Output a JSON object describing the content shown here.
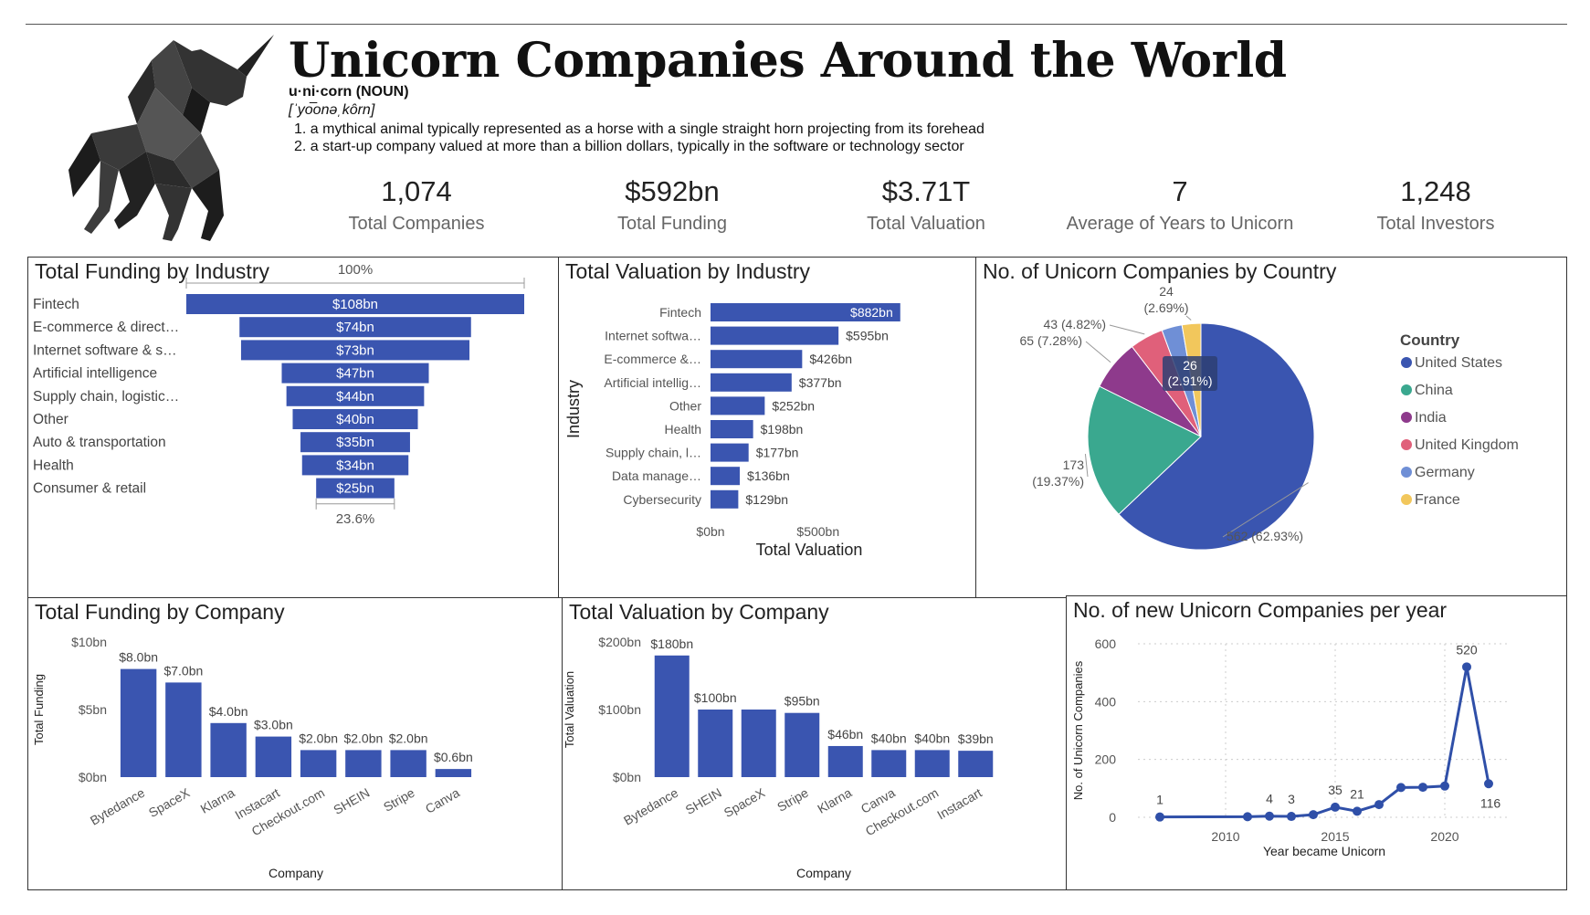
{
  "header": {
    "title": "Unicorn Companies Around the World",
    "word": "u·ni·corn (NOUN)",
    "pronunciation": "[ˈyo͞onəˌkôrn]",
    "definitions": [
      "1. a mythical animal typically represented as a horse with a single straight horn projecting from its forehead",
      "2. a start-up company valued at more than a billion dollars, typically in the software or technology sector"
    ]
  },
  "kpis": [
    {
      "value": "1,074",
      "label": "Total Companies"
    },
    {
      "value": "$592bn",
      "label": "Total Funding"
    },
    {
      "value": "$3.71T",
      "label": "Total Valuation"
    },
    {
      "value": "7",
      "label": "Average of Years to Unicorn"
    },
    {
      "value": "1,248",
      "label": "Total Investors"
    }
  ],
  "colors": {
    "bar": "#3a55b0",
    "line": "#2f4fa8",
    "highlight": "#2a47a2"
  },
  "chart_data": [
    {
      "type": "bar",
      "id": "funding_by_industry",
      "title": "Total Funding by Industry",
      "orientation": "funnel",
      "top_label": "100%",
      "bottom_label": "23.6%",
      "categories": [
        "Fintech",
        "E-commerce & direct…",
        "Internet software & s…",
        "Artificial intelligence",
        "Supply chain, logistic…",
        "Other",
        "Auto & transportation",
        "Health",
        "Consumer & retail"
      ],
      "values": [
        108,
        74,
        73,
        47,
        44,
        40,
        35,
        34,
        25
      ],
      "data_labels": [
        "$108bn",
        "$74bn",
        "$73bn",
        "$47bn",
        "$44bn",
        "$40bn",
        "$35bn",
        "$34bn",
        "$25bn"
      ]
    },
    {
      "type": "bar",
      "id": "valuation_by_industry",
      "title": "Total Valuation by Industry",
      "orientation": "horizontal",
      "categories": [
        "Fintech",
        "Internet softwa…",
        "E-commerce &…",
        "Artificial intellig…",
        "Other",
        "Health",
        "Supply chain, l…",
        "Data manage…",
        "Cybersecurity"
      ],
      "values": [
        882,
        595,
        426,
        377,
        252,
        198,
        177,
        136,
        129
      ],
      "data_labels": [
        "$882bn",
        "$595bn",
        "$426bn",
        "$377bn",
        "$252bn",
        "$198bn",
        "$177bn",
        "$136bn",
        "$129bn"
      ],
      "xlabel": "Total Valuation",
      "ylabel": "Industry",
      "xticks": [
        "$0bn",
        "$500bn"
      ],
      "xlim": [
        0,
        900
      ]
    },
    {
      "type": "pie",
      "id": "companies_by_country",
      "title": "No. of Unicorn Companies by Country",
      "legend_title": "Country",
      "legend_position": "right",
      "labels": [
        "United States",
        "China",
        "India",
        "United Kingdom",
        "Germany",
        "France"
      ],
      "values": [
        562,
        173,
        65,
        43,
        26,
        24
      ],
      "slice_labels": [
        "562 (62.93%)",
        "173 (19.37%)",
        "65 (7.28%)",
        "43 (4.82%)",
        "26 (2.91%)",
        "24 (2.69%)"
      ],
      "colors": [
        "#3a55b0",
        "#3aa88f",
        "#8e3a8c",
        "#e0607a",
        "#6f8fd6",
        "#f2c75c"
      ]
    },
    {
      "type": "bar",
      "id": "funding_by_company",
      "title": "Total Funding by Company",
      "categories": [
        "Bytedance",
        "SpaceX",
        "Klarna",
        "Instacart",
        "Checkout.com",
        "SHEIN",
        "Stripe",
        "Canva"
      ],
      "values": [
        8.0,
        7.0,
        4.0,
        3.0,
        2.0,
        2.0,
        2.0,
        0.6
      ],
      "data_labels": [
        "$8.0bn",
        "$7.0bn",
        "$4.0bn",
        "$3.0bn",
        "$2.0bn",
        "$2.0bn",
        "$2.0bn",
        "$0.6bn"
      ],
      "xlabel": "Company",
      "ylabel": "Total Funding",
      "yticks": [
        "$0bn",
        "$5bn",
        "$10bn"
      ],
      "ylim": [
        0,
        10
      ]
    },
    {
      "type": "bar",
      "id": "valuation_by_company",
      "title": "Total Valuation by Company",
      "categories": [
        "Bytedance",
        "SHEIN",
        "SpaceX",
        "Stripe",
        "Klarna",
        "Canva",
        "Checkout.com",
        "Instacart"
      ],
      "values": [
        180,
        100,
        100,
        95,
        46,
        40,
        40,
        39
      ],
      "data_labels": [
        "$180bn",
        "$100bn",
        "",
        "$95bn",
        "$46bn",
        "$40bn",
        "$40bn",
        "$39bn"
      ],
      "xlabel": "Company",
      "ylabel": "Total Valuation",
      "yticks": [
        "$0bn",
        "$100bn",
        "$200bn"
      ],
      "ylim": [
        0,
        200
      ]
    },
    {
      "type": "line",
      "id": "new_unicorns_per_year",
      "title": "No. of new Unicorn Companies per year",
      "x": [
        2007,
        2011,
        2012,
        2013,
        2014,
        2015,
        2016,
        2017,
        2018,
        2019,
        2020,
        2021,
        2022
      ],
      "y": [
        1,
        2,
        4,
        3,
        9,
        35,
        21,
        44,
        103,
        104,
        108,
        520,
        116
      ],
      "point_labels": [
        "1",
        "",
        "4",
        "3",
        "",
        "35",
        "21",
        "",
        "",
        "",
        "",
        "520",
        "116"
      ],
      "xlabel": "Year became Unicorn",
      "ylabel": "No. of Unicorn Companies",
      "xticks": [
        "2010",
        "2015",
        "2020"
      ],
      "yticks": [
        "0",
        "200",
        "400",
        "600"
      ],
      "xlim": [
        2006,
        2023
      ],
      "ylim": [
        0,
        600
      ],
      "grid": true
    }
  ]
}
